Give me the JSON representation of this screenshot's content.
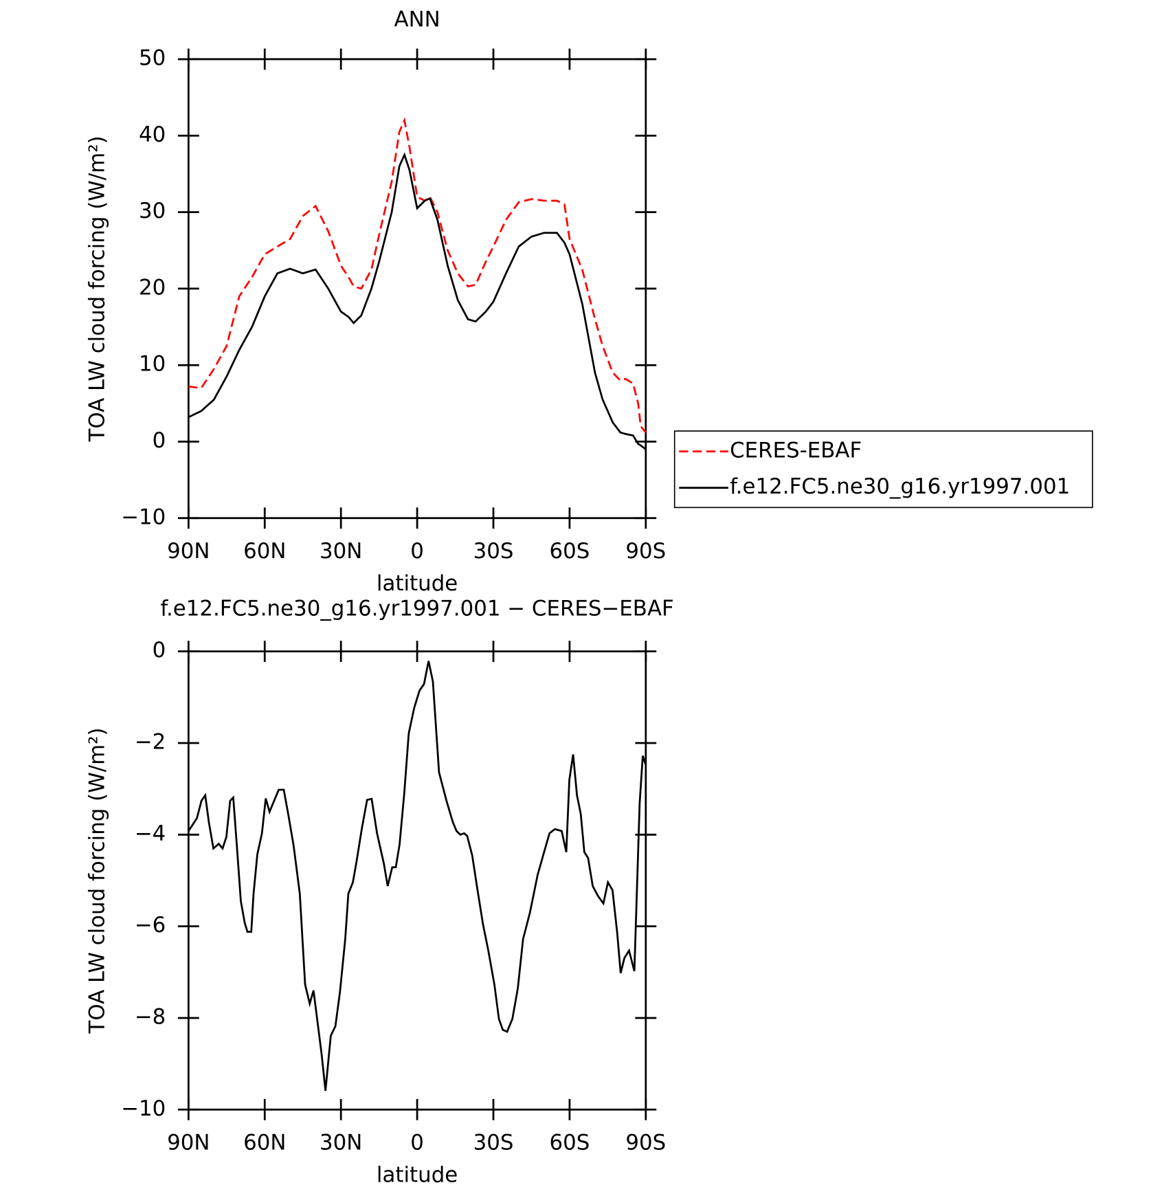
{
  "chart_data": [
    {
      "type": "line",
      "title": "ANN",
      "xlabel": "latitude",
      "ylabel": "TOA LW cloud forcing (W/m²)",
      "x": [
        90,
        85,
        80,
        75,
        70,
        65,
        60,
        55,
        50,
        45,
        40,
        35,
        30,
        27,
        25,
        22,
        18,
        15,
        10,
        7,
        5,
        3,
        0,
        -3,
        -5,
        -8,
        -12,
        -16,
        -20,
        -23,
        -27,
        -30,
        -35,
        -40,
        -45,
        -50,
        -55,
        -58,
        -60,
        -65,
        -70,
        -73,
        -77,
        -80,
        -82,
        -85,
        -87,
        -88,
        -90
      ],
      "series": [
        {
          "name": "CERES-EBAF",
          "color": "#ff0000",
          "linestyle": "dashed",
          "values": [
            7.2,
            7,
            9.5,
            12.5,
            19,
            21.5,
            24.5,
            25.5,
            26.5,
            29.5,
            30.8,
            27.5,
            23,
            21.5,
            20.3,
            20,
            22.5,
            27,
            34,
            40.5,
            42,
            38.5,
            32,
            31.5,
            32,
            30,
            25,
            22,
            20.3,
            20.5,
            23.5,
            25.5,
            29,
            31.3,
            31.7,
            31.5,
            31.5,
            31,
            26.5,
            22.5,
            16,
            12.5,
            9,
            8,
            8.2,
            7.6,
            5,
            2,
            1.2
          ]
        },
        {
          "name": "f.e12.FC5.ne30_g16.yr1997.001",
          "color": "#000000",
          "linestyle": "solid",
          "values": [
            3.2,
            4,
            5.5,
            8.5,
            12,
            15,
            19,
            22,
            22.6,
            22,
            22.5,
            20,
            17,
            16.3,
            15.5,
            16.5,
            20,
            23.5,
            30,
            36,
            37.5,
            35.5,
            30.5,
            31.5,
            31.8,
            29,
            23,
            18.5,
            16,
            15.7,
            17,
            18.3,
            22,
            25.5,
            26.8,
            27.3,
            27.3,
            26,
            24.5,
            18,
            9,
            5.5,
            2.5,
            1.2,
            1,
            0.8,
            -0.3,
            -0.5,
            -1
          ]
        }
      ],
      "xlim": [
        90,
        -90
      ],
      "xticks": [
        {
          "value": 90,
          "label": "90N"
        },
        {
          "value": 60,
          "label": "60N"
        },
        {
          "value": 30,
          "label": "30N"
        },
        0,
        {
          "value": -30,
          "label": "30S"
        },
        {
          "value": -60,
          "label": "60S"
        },
        {
          "value": -90,
          "label": "90S"
        }
      ],
      "ylim": [
        -10,
        50
      ],
      "yticks": [
        {
          "value": -10,
          "label": "−10"
        },
        0,
        10,
        20,
        30,
        40,
        50
      ],
      "legend": "right"
    },
    {
      "type": "line",
      "title": "f.e12.FC5.ne30_g16.yr1997.001 − CERES−EBAF",
      "xlabel": "latitude",
      "ylabel": "TOA LW cloud forcing (W/m²)",
      "x": [
        90,
        86.7,
        84.9,
        83.4,
        82,
        80.2,
        78.1,
        76.6,
        75.1,
        73.6,
        72.4,
        70.9,
        69.4,
        67.9,
        66.8,
        65.3,
        64.4,
        62.9,
        61.1,
        59.6,
        58.1,
        56.3,
        54.5,
        52.5,
        50.7,
        48.6,
        46.2,
        44.1,
        42.3,
        40.8,
        39,
        37.6,
        36.1,
        34,
        32.2,
        30.4,
        28.3,
        27.1,
        25.3,
        23.9,
        21.8,
        19.7,
        17.9,
        15.8,
        13.1,
        11.6,
        9.8,
        8.4,
        6.9,
        5.1,
        3.3,
        1.2,
        -0.9,
        -2.7,
        -4.5,
        -6.2,
        -8.6,
        -11.6,
        -14,
        -15.5,
        -17,
        -18.5,
        -19.7,
        -21.7,
        -23.5,
        -25.9,
        -28,
        -30.4,
        -32.2,
        -33.7,
        -35.4,
        -37.5,
        -39.6,
        -41.7,
        -44.4,
        -47.4,
        -49.7,
        -52.1,
        -54.2,
        -56.9,
        -58.7,
        -59.9,
        -61.4,
        -62.9,
        -64.4,
        -65.8,
        -67.3,
        -69.1,
        -71.2,
        -73.3,
        -75.1,
        -76.9,
        -78.7,
        -80.1,
        -81.6,
        -83.4,
        -85.5,
        -87.6,
        -88.8,
        -90
      ],
      "series": [
        {
          "color": "#000000",
          "linestyle": "solid",
          "values": [
            -3.92,
            -3.64,
            -3.26,
            -3.14,
            -3.72,
            -4.3,
            -4.2,
            -4.3,
            -4.05,
            -3.26,
            -3.19,
            -4.3,
            -5.45,
            -5.92,
            -6.12,
            -6.12,
            -5.29,
            -4.43,
            -3.97,
            -3.21,
            -3.5,
            -3.26,
            -3.02,
            -3.02,
            -3.57,
            -4.25,
            -5.29,
            -7.27,
            -7.69,
            -7.4,
            -8.18,
            -8.79,
            -9.59,
            -8.39,
            -8.18,
            -7.44,
            -6.28,
            -5.29,
            -5.04,
            -4.6,
            -3.88,
            -3.24,
            -3.22,
            -3.97,
            -4.63,
            -5.12,
            -4.71,
            -4.71,
            -4.21,
            -3.11,
            -1.79,
            -1.24,
            -0.86,
            -0.71,
            -0.21,
            -0.66,
            -2.64,
            -3.27,
            -3.72,
            -3.92,
            -4,
            -3.97,
            -4.03,
            -4.46,
            -5.12,
            -5.95,
            -6.53,
            -7.27,
            -8.02,
            -8.26,
            -8.3,
            -8.02,
            -7.36,
            -6.28,
            -5.7,
            -4.88,
            -4.43,
            -3.97,
            -3.88,
            -3.92,
            -4.38,
            -2.81,
            -2.25,
            -3.14,
            -3.55,
            -4.38,
            -4.51,
            -5.12,
            -5.34,
            -5.5,
            -5.04,
            -5.21,
            -6.12,
            -7.02,
            -6.69,
            -6.53,
            -6.98,
            -3.31,
            -2.28,
            -2.48
          ]
        }
      ],
      "xlim": [
        90,
        -90
      ],
      "xticks": [
        {
          "value": 90,
          "label": "90N"
        },
        {
          "value": 60,
          "label": "60N"
        },
        {
          "value": 30,
          "label": "30N"
        },
        0,
        {
          "value": -30,
          "label": "30S"
        },
        {
          "value": -60,
          "label": "60S"
        },
        {
          "value": -90,
          "label": "90S"
        }
      ],
      "ylim": [
        -10,
        0
      ],
      "yticks": [
        {
          "value": -10,
          "label": "−10"
        },
        {
          "value": -8,
          "label": "−8"
        },
        {
          "value": -6,
          "label": "−6"
        },
        {
          "value": -4,
          "label": "−4"
        },
        {
          "value": -2,
          "label": "−2"
        },
        0
      ]
    }
  ]
}
